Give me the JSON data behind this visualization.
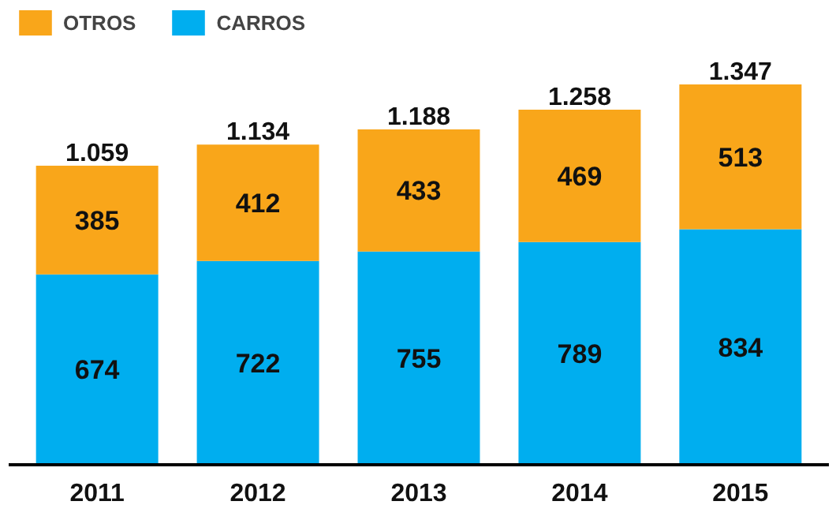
{
  "chart_data": {
    "type": "bar",
    "stacked": true,
    "categories": [
      "2011",
      "2012",
      "2013",
      "2014",
      "2015"
    ],
    "series": [
      {
        "name": "CARROS",
        "color": "#00aeef",
        "values": [
          674,
          722,
          755,
          789,
          834
        ]
      },
      {
        "name": "OTROS",
        "color": "#f9a61a",
        "values": [
          385,
          412,
          433,
          469,
          513
        ]
      }
    ],
    "data_labels": true,
    "totals": [
      "1.059",
      "1.134",
      "1.188",
      "1.258",
      "1.347"
    ],
    "legend": "top left",
    "grid": false
  }
}
